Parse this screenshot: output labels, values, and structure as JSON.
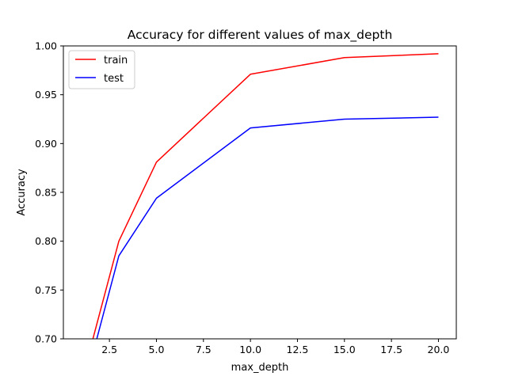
{
  "chart_data": {
    "type": "line",
    "title": "Accuracy for different values of max_depth",
    "xlabel": "max_depth",
    "ylabel": "Accuracy",
    "xlim": [
      0.05,
      20.95
    ],
    "ylim": [
      0.7,
      1.0
    ],
    "xticks": [
      2.5,
      5.0,
      7.5,
      10.0,
      12.5,
      15.0,
      17.5,
      20.0
    ],
    "xtick_labels": [
      "2.5",
      "5.0",
      "7.5",
      "10.0",
      "12.5",
      "15.0",
      "17.5",
      "20.0"
    ],
    "yticks": [
      0.7,
      0.75,
      0.8,
      0.85,
      0.9,
      0.95,
      1.0
    ],
    "ytick_labels": [
      "0.70",
      "0.75",
      "0.80",
      "0.85",
      "0.90",
      "0.95",
      "1.00"
    ],
    "grid": false,
    "legend_position": "top-left",
    "series": [
      {
        "name": "train",
        "color": "#ff0000",
        "x": [
          1,
          3,
          5,
          10,
          15,
          20
        ],
        "y": [
          0.655,
          0.8,
          0.881,
          0.971,
          0.988,
          0.992
        ]
      },
      {
        "name": "test",
        "color": "#0000ff",
        "x": [
          1,
          3,
          5,
          10,
          15,
          20
        ],
        "y": [
          0.64,
          0.785,
          0.844,
          0.916,
          0.925,
          0.927
        ]
      }
    ]
  }
}
